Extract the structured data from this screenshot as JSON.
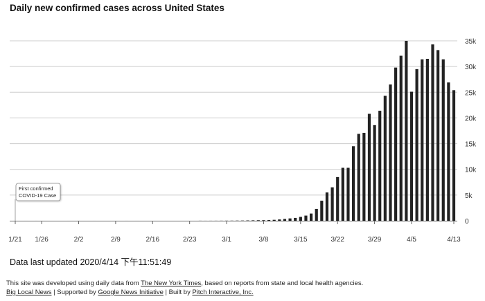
{
  "chart_data": {
    "type": "bar",
    "title": "Daily new confirmed cases across United States",
    "xlabel": "",
    "ylabel": "",
    "ylim": [
      0,
      35000
    ],
    "x_tick_labels": [
      "1/21",
      "1/26",
      "2/2",
      "2/9",
      "2/16",
      "2/23",
      "3/1",
      "3/8",
      "3/15",
      "3/22",
      "3/29",
      "4/5",
      "4/13"
    ],
    "y_tick_labels": [
      "0",
      "5k",
      "10k",
      "15k",
      "20k",
      "25k",
      "30k",
      "35k"
    ],
    "y_ticks": [
      0,
      5000,
      10000,
      15000,
      20000,
      25000,
      30000,
      35000
    ],
    "grid": true,
    "annotation": {
      "lines": [
        "First confirmed",
        "COVID-19 Case"
      ],
      "date": "1/21"
    },
    "categories": [
      "1/21",
      "1/22",
      "1/23",
      "1/24",
      "1/25",
      "1/26",
      "1/27",
      "1/28",
      "1/29",
      "1/30",
      "1/31",
      "2/1",
      "2/2",
      "2/3",
      "2/4",
      "2/5",
      "2/6",
      "2/7",
      "2/8",
      "2/9",
      "2/10",
      "2/11",
      "2/12",
      "2/13",
      "2/14",
      "2/15",
      "2/16",
      "2/17",
      "2/18",
      "2/19",
      "2/20",
      "2/21",
      "2/22",
      "2/23",
      "2/24",
      "2/25",
      "2/26",
      "2/27",
      "2/28",
      "2/29",
      "3/1",
      "3/2",
      "3/3",
      "3/4",
      "3/5",
      "3/6",
      "3/7",
      "3/8",
      "3/9",
      "3/10",
      "3/11",
      "3/12",
      "3/13",
      "3/14",
      "3/15",
      "3/16",
      "3/17",
      "3/18",
      "3/19",
      "3/20",
      "3/21",
      "3/22",
      "3/23",
      "3/24",
      "3/25",
      "3/26",
      "3/27",
      "3/28",
      "3/29",
      "3/30",
      "3/31",
      "4/1",
      "4/2",
      "4/3",
      "4/4",
      "4/5",
      "4/6",
      "4/7",
      "4/8",
      "4/9",
      "4/10",
      "4/11",
      "4/12",
      "4/13"
    ],
    "values": [
      1,
      0,
      1,
      0,
      2,
      1,
      0,
      0,
      0,
      0,
      1,
      0,
      3,
      0,
      0,
      1,
      0,
      0,
      0,
      0,
      0,
      2,
      0,
      1,
      0,
      0,
      0,
      0,
      0,
      0,
      0,
      0,
      0,
      0,
      0,
      10,
      5,
      8,
      10,
      15,
      20,
      25,
      35,
      40,
      60,
      80,
      100,
      110,
      130,
      180,
      250,
      350,
      450,
      550,
      750,
      1000,
      1400,
      2300,
      3900,
      5500,
      6500,
      8500,
      10300,
      10300,
      14500,
      16900,
      17100,
      20800,
      18600,
      21400,
      24300,
      26500,
      29800,
      32100,
      35000,
      25100,
      29500,
      31400,
      31500,
      34300,
      33200,
      31400,
      26900,
      25400
    ]
  },
  "updated": "Data last updated 2020/4/14 下午11:51:49",
  "footer": {
    "line1_prefix": "This site was developed using daily data from ",
    "line1_link": "The New York Times",
    "line1_suffix": ", based on reports from state and local health agencies.",
    "line2_link1": "Big Local News",
    "line2_sep1": " | Supported by ",
    "line2_link2": "Google News Initiative",
    "line2_sep2": " | Built by ",
    "line2_link3": "Pitch Interactive, Inc."
  },
  "colors": {
    "bar": "#222222",
    "grid": "#cccccc",
    "axis": "#666666"
  }
}
